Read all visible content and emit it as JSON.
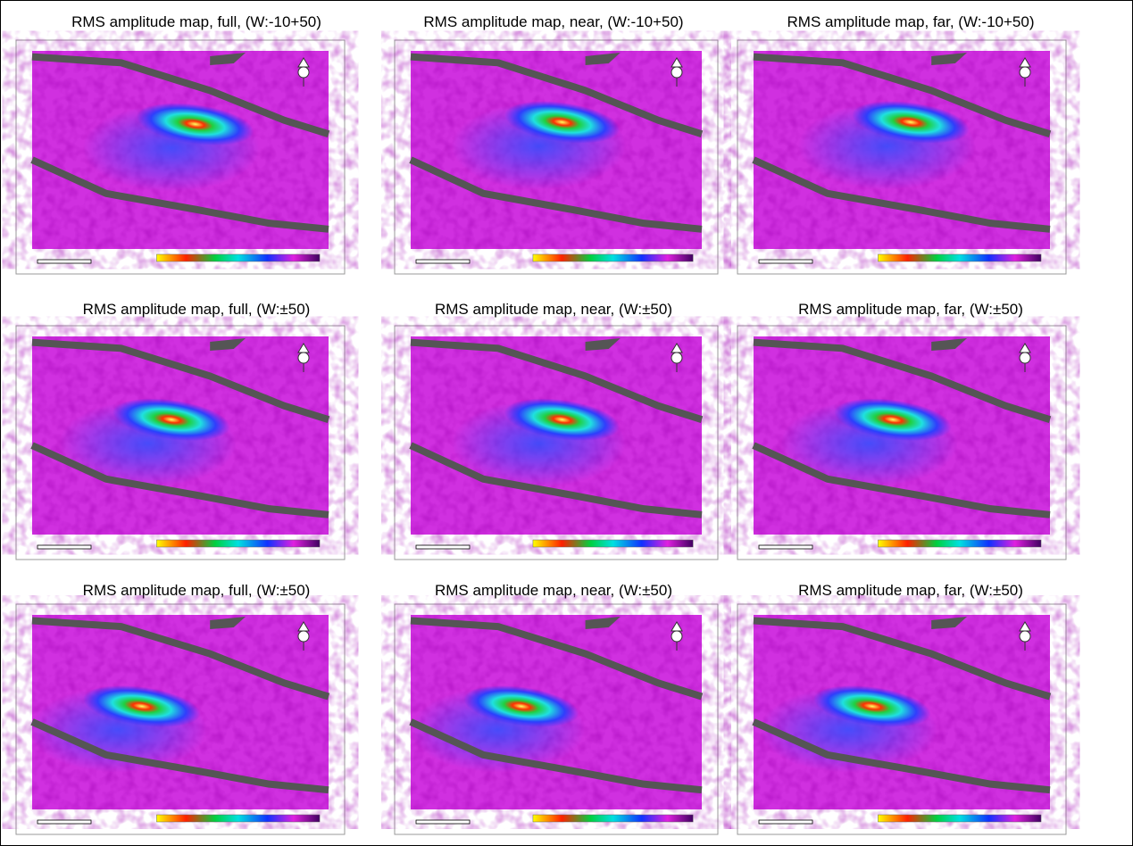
{
  "panels": [
    {
      "title": "RMS amplitude map, full, (W:-10+50)"
    },
    {
      "title": "RMS amplitude map, near, (W:-10+50)"
    },
    {
      "title": "RMS amplitude map, far, (W:-10+50)"
    },
    {
      "title": "RMS amplitude map, full, (W:±50)"
    },
    {
      "title": "RMS amplitude map, near, (W:±50)"
    },
    {
      "title": "RMS amplitude map, far, (W:±50)"
    },
    {
      "title": "RMS amplitude map, full, (W:±50)"
    },
    {
      "title": "RMS amplitude map, near, (W:±50)"
    },
    {
      "title": "RMS amplitude map, far, (W:±50)"
    }
  ]
}
